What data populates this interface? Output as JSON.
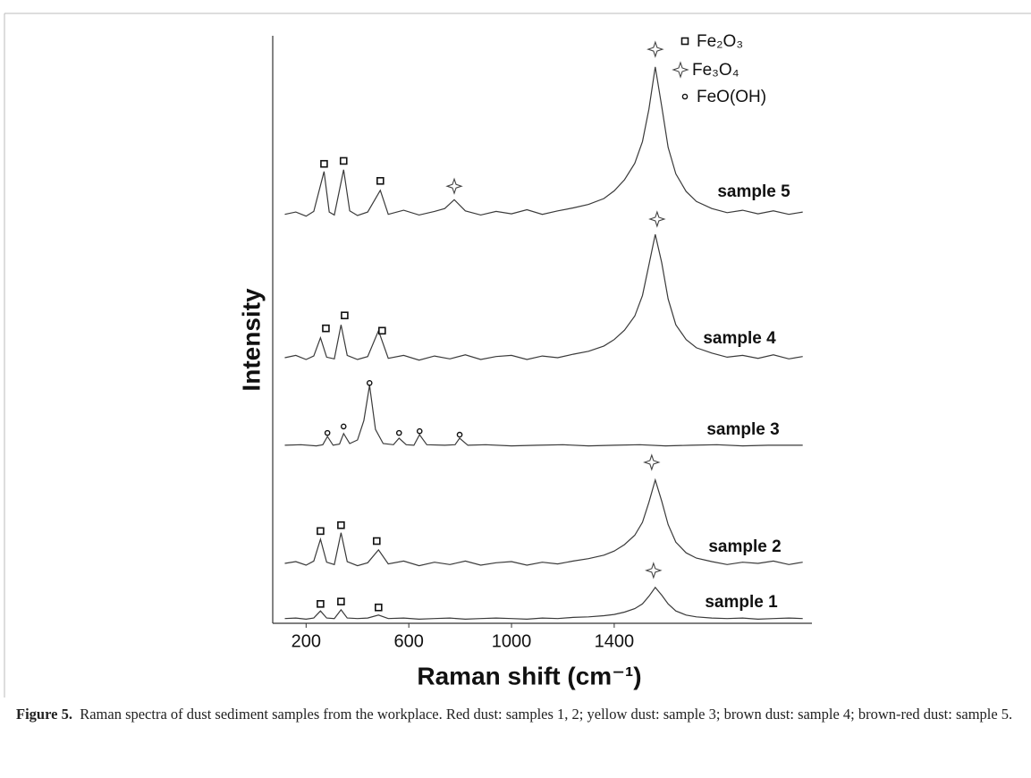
{
  "chart_data": {
    "type": "line",
    "xlabel": "Raman shift (cm⁻¹)",
    "ylabel": "Intensity",
    "xlim": [
      70,
      2170
    ],
    "xticks": [
      200,
      600,
      1000,
      1400
    ],
    "ylim": [
      0,
      100
    ],
    "series": [
      {
        "name": "sample 1",
        "color": "#3a3a3a",
        "x": [
          117,
          160,
          200,
          230,
          256,
          280,
          310,
          336,
          360,
          400,
          440,
          482,
          520,
          580,
          640,
          700,
          760,
          820,
          880,
          940,
          1000,
          1060,
          1120,
          1180,
          1240,
          1300,
          1360,
          1400,
          1440,
          1480,
          1510,
          1535,
          1560,
          1585,
          1610,
          1640,
          1680,
          1720,
          1780,
          1840,
          1900,
          1960,
          2020,
          2080,
          2134
        ],
        "values": [
          0.8,
          0.9,
          0.7,
          0.9,
          2.1,
          0.9,
          0.8,
          2.3,
          0.9,
          0.8,
          0.9,
          1.4,
          0.8,
          0.9,
          0.7,
          0.8,
          0.9,
          0.7,
          0.8,
          0.9,
          0.8,
          0.7,
          0.9,
          0.8,
          1.0,
          1.1,
          1.3,
          1.5,
          1.9,
          2.5,
          3.3,
          4.6,
          6.1,
          4.8,
          3.3,
          2.1,
          1.4,
          1.1,
          0.9,
          0.8,
          0.9,
          0.7,
          0.8,
          0.9,
          0.8
        ]
      },
      {
        "name": "sample 2",
        "color": "#3a3a3a",
        "x": [
          117,
          160,
          200,
          230,
          256,
          280,
          310,
          336,
          360,
          400,
          440,
          482,
          520,
          580,
          640,
          700,
          760,
          820,
          880,
          940,
          1000,
          1060,
          1120,
          1180,
          1240,
          1300,
          1360,
          1400,
          1440,
          1480,
          1510,
          1535,
          1560,
          1585,
          1610,
          1640,
          1680,
          1720,
          1780,
          1840,
          1900,
          1960,
          2020,
          2080,
          2134
        ],
        "values": [
          10.2,
          10.5,
          9.9,
          10.6,
          14.3,
          10.4,
          10.0,
          15.4,
          10.5,
          9.8,
          10.3,
          12.5,
          10.1,
          10.6,
          9.8,
          10.4,
          10.0,
          10.6,
          9.9,
          10.3,
          10.5,
          9.9,
          10.4,
          10.1,
          10.6,
          11.0,
          11.6,
          12.3,
          13.4,
          15.0,
          17.2,
          20.6,
          24.4,
          20.8,
          16.8,
          13.8,
          12.0,
          11.1,
          10.5,
          10.0,
          10.4,
          10.2,
          10.6,
          10.0,
          10.4
        ]
      },
      {
        "name": "sample 3",
        "color": "#3a3a3a",
        "x": [
          117,
          180,
          240,
          265,
          283,
          305,
          330,
          346,
          370,
          400,
          425,
          447,
          470,
          500,
          540,
          562,
          590,
          620,
          642,
          670,
          740,
          780,
          798,
          830,
          900,
          1000,
          1100,
          1200,
          1300,
          1400,
          1500,
          1600,
          1700,
          1800,
          1900,
          2000,
          2134
        ],
        "values": [
          30.3,
          30.4,
          30.2,
          30.4,
          31.8,
          30.3,
          30.5,
          32.3,
          30.6,
          31.2,
          34.5,
          40.5,
          33.0,
          30.6,
          30.4,
          31.5,
          30.4,
          30.3,
          32.1,
          30.4,
          30.3,
          30.4,
          31.5,
          30.3,
          30.4,
          30.2,
          30.3,
          30.4,
          30.2,
          30.3,
          30.4,
          30.2,
          30.3,
          30.4,
          30.2,
          30.3,
          30.3
        ]
      },
      {
        "name": "sample 4",
        "color": "#3a3a3a",
        "x": [
          117,
          160,
          200,
          230,
          256,
          280,
          310,
          336,
          360,
          400,
          440,
          482,
          520,
          580,
          640,
          700,
          760,
          820,
          880,
          940,
          1000,
          1060,
          1120,
          1180,
          1240,
          1300,
          1360,
          1400,
          1440,
          1480,
          1510,
          1535,
          1560,
          1585,
          1610,
          1640,
          1680,
          1720,
          1780,
          1840,
          1900,
          1960,
          2020,
          2080,
          2134
        ],
        "values": [
          45.2,
          45.6,
          44.9,
          45.5,
          48.6,
          45.3,
          45.0,
          50.8,
          45.6,
          44.9,
          45.4,
          49.8,
          45.1,
          45.6,
          44.8,
          45.5,
          45.0,
          45.7,
          44.9,
          45.4,
          45.6,
          44.9,
          45.5,
          45.2,
          45.8,
          46.3,
          47.2,
          48.3,
          49.9,
          52.3,
          55.8,
          61.0,
          66.2,
          61.4,
          55.2,
          50.8,
          48.3,
          46.9,
          46.0,
          45.3,
          45.6,
          45.1,
          45.7,
          45.0,
          45.4
        ]
      },
      {
        "name": "sample 5",
        "color": "#3a3a3a",
        "x": [
          117,
          160,
          200,
          230,
          270,
          290,
          310,
          346,
          370,
          400,
          440,
          489,
          520,
          580,
          640,
          700,
          740,
          777,
          820,
          880,
          940,
          1000,
          1060,
          1120,
          1180,
          1240,
          1300,
          1360,
          1400,
          1440,
          1480,
          1510,
          1535,
          1560,
          1585,
          1610,
          1640,
          1680,
          1720,
          1780,
          1840,
          1900,
          1960,
          2020,
          2080,
          2134
        ],
        "values": [
          69.6,
          70.0,
          69.3,
          70.1,
          76.9,
          70.0,
          69.5,
          77.2,
          70.2,
          69.4,
          70.0,
          73.7,
          69.6,
          70.3,
          69.5,
          70.1,
          70.6,
          72.1,
          70.2,
          69.5,
          70.1,
          69.7,
          70.4,
          69.6,
          70.2,
          70.7,
          71.3,
          72.3,
          73.6,
          75.5,
          78.3,
          82.0,
          87.5,
          94.7,
          88.0,
          81.0,
          76.5,
          73.5,
          71.8,
          70.6,
          69.9,
          70.3,
          69.7,
          70.2,
          69.6,
          70.0
        ]
      }
    ],
    "markers": [
      {
        "name": "Fe₂O₃",
        "shape": "square",
        "x": [
          270,
          346,
          489,
          277,
          350,
          496,
          256,
          336,
          475,
          256,
          336,
          482
        ],
        "y": [
          78.2,
          78.7,
          75.3,
          50.2,
          52.4,
          49.8,
          15.7,
          16.7,
          14.0,
          3.3,
          3.7,
          2.7
        ]
      },
      {
        "name": "Fe₃O₄",
        "shape": "star",
        "x": [
          1560,
          777,
          1567,
          1546,
          1553
        ],
        "y": [
          97.7,
          74.4,
          68.8,
          27.4,
          9.0
        ]
      },
      {
        "name": "FeO(OH)",
        "shape": "circle",
        "x": [
          283,
          346,
          447,
          562,
          642,
          798
        ],
        "y": [
          32.4,
          33.5,
          40.9,
          32.4,
          32.7,
          32.1
        ]
      }
    ]
  },
  "caption": {
    "label": "Figure 5.",
    "text": "Raman spectra of dust sediment samples from the workplace. Red dust: samples 1, 2; yellow dust: sample 3; brown dust: sample 4; brown-red dust: sample 5."
  }
}
